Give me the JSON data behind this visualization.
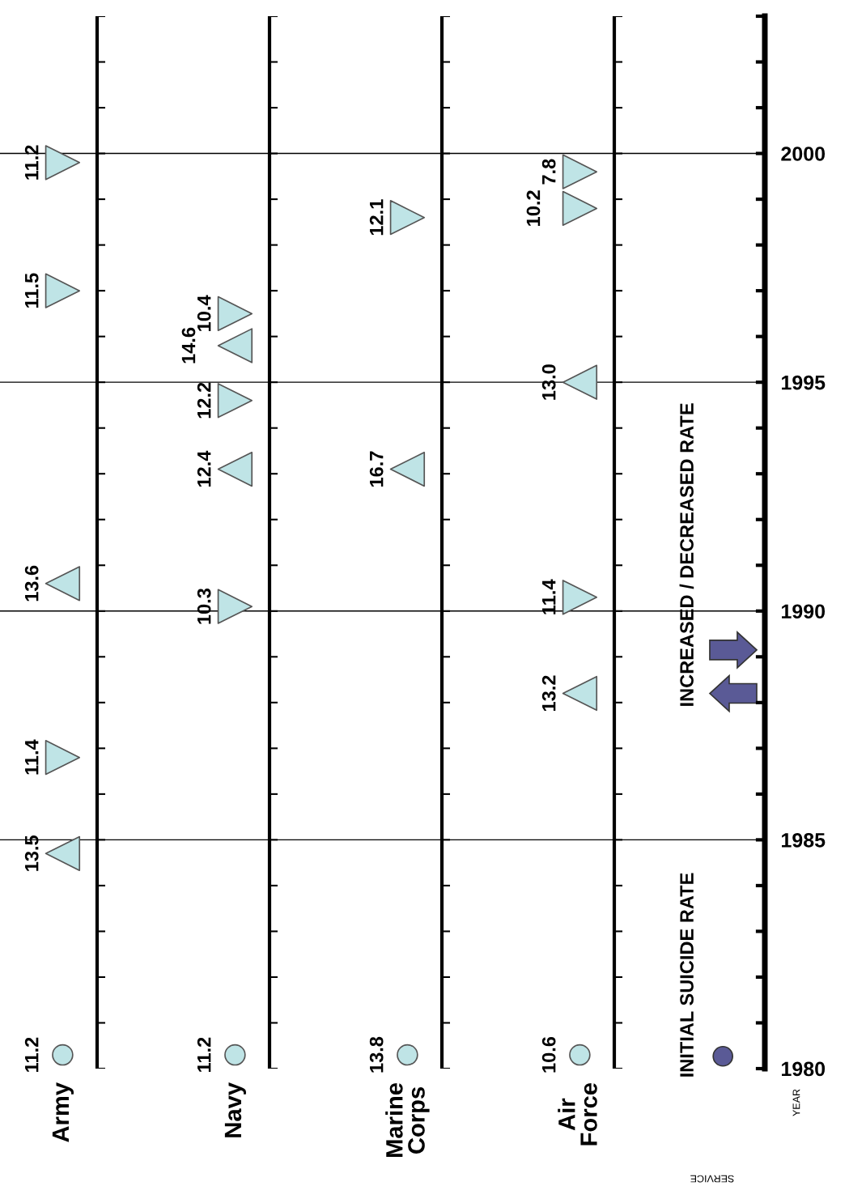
{
  "chart_data": {
    "type": "scatter",
    "categories": [
      "Army",
      "Navy",
      "Marine\nCorps",
      "Air\nForce"
    ],
    "xlabel": "SERVICE",
    "ylabel": "YEAR",
    "ylim": [
      1980,
      2003
    ],
    "yticks": [
      1980,
      {
        "value": 1981,
        "label": null
      },
      {
        "value": 1982,
        "label": null
      },
      {
        "value": 1983,
        "label": null
      },
      {
        "value": 1984,
        "label": null
      },
      1985,
      {
        "value": 1986,
        "label": null
      },
      {
        "value": 1987,
        "label": null
      },
      {
        "value": 1988,
        "label": null
      },
      {
        "value": 1989,
        "label": null
      },
      1990,
      {
        "value": 1991,
        "label": null
      },
      {
        "value": 1992,
        "label": null
      },
      {
        "value": 1993,
        "label": null
      },
      {
        "value": 1994,
        "label": null
      },
      1995,
      {
        "value": 1996,
        "label": null
      },
      {
        "value": 1997,
        "label": null
      },
      {
        "value": 1998,
        "label": null
      },
      {
        "value": 1999,
        "label": null
      },
      2000,
      {
        "value": 2001,
        "label": null
      },
      {
        "value": 2002,
        "label": null
      },
      {
        "value": 2003,
        "label": null
      }
    ],
    "grid": true,
    "series": [
      {
        "color": "#bfe4e6",
        "marker": "circle",
        "x": [
          "Army",
          "Navy",
          "Marine\nCorps",
          "Air\nForce"
        ],
        "values": [
          1980.3,
          1980.3,
          1980.3,
          1980.3
        ]
      },
      {
        "color": "#bfe4e6",
        "marker": "triangle",
        "x": [
          "Army",
          "Army",
          "Navy",
          "Navy",
          "Marine\nCorps",
          "Air\nForce",
          "Air\nForce"
        ],
        "values": [
          1984.7,
          1990.6,
          1993.1,
          1995.8,
          1993.1,
          1988.2,
          1995.0
        ]
      },
      {
        "color": "#bfe4e6",
        "marker": "triangle",
        "x": [
          "Army",
          "Army",
          "Army",
          "Navy",
          "Navy",
          "Navy",
          "Marine\nCorps",
          "Air\nForce",
          "Air\nForce",
          "Air\nForce"
        ],
        "values": [
          1986.8,
          1997.0,
          1999.8,
          1990.1,
          1994.6,
          1996.5,
          1998.6,
          1990.3,
          1998.8,
          1999.6
        ]
      }
    ],
    "annotations": [
      "INITIAL SUICIDE RATE",
      "INCREASED / DECREASED RATE",
      {
        "text": "11.2",
        "x": "Army",
        "y": 1980.3
      },
      {
        "text": "11.2",
        "x": "Navy",
        "y": 1980.3
      },
      {
        "text": "13.8",
        "x": "Marine\nCorps",
        "y": 1980.3
      },
      {
        "text": "10.6",
        "x": "Air\nForce",
        "y": 1980.3
      },
      {
        "text": "13.5",
        "x": "Army",
        "y": 1984.7
      },
      {
        "text": "13.6",
        "x": "Army",
        "y": 1990.6
      },
      {
        "text": "12.4",
        "x": "Navy",
        "y": 1993.1
      },
      {
        "text": "14.6",
        "x": "Navy",
        "y": 1995.8
      },
      {
        "text": "16.7",
        "x": "Marine\nCorps",
        "y": 1993.1
      },
      {
        "text": "13.2",
        "x": "Air\nForce",
        "y": 1988.2
      },
      {
        "text": "13.0",
        "x": "Air\nForce",
        "y": 1995.0
      },
      {
        "text": "11.4",
        "x": "Army",
        "y": 1986.8
      },
      {
        "text": "11.5",
        "x": "Army",
        "y": 1997.0
      },
      {
        "text": "11.2",
        "x": "Army",
        "y": 1999.8
      },
      {
        "text": "10.3",
        "x": "Navy",
        "y": 1990.1
      },
      {
        "text": "12.2",
        "x": "Navy",
        "y": 1994.6
      },
      {
        "text": "10.4",
        "x": "Navy",
        "y": 1996.5
      },
      {
        "text": "12.1",
        "x": "Marine\nCorps",
        "y": 1998.6
      },
      {
        "text": "11.4",
        "x": "Air\nForce",
        "y": 1990.3
      },
      {
        "text": "10.2",
        "x": "Air\nForce",
        "y": 1998.8
      },
      {
        "text": "7.8",
        "x": "Air\nForce",
        "y": 1999.6
      }
    ]
  }
}
